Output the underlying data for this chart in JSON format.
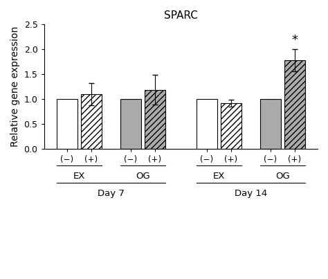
{
  "title": "SPARC",
  "ylabel": "Relative gene expression",
  "ylim": [
    0.0,
    2.5
  ],
  "yticks": [
    0.0,
    0.5,
    1.0,
    1.5,
    2.0,
    2.5
  ],
  "groups": [
    {
      "label": "EX",
      "day": "Day 7",
      "minus_val": 1.0,
      "plus_val": 1.1,
      "minus_err": 0.0,
      "plus_err": 0.22,
      "minus_color": "white",
      "plus_color": "hatch"
    },
    {
      "label": "OG",
      "day": "Day 7",
      "minus_val": 1.0,
      "plus_val": 1.19,
      "minus_err": 0.0,
      "plus_err": 0.3,
      "minus_color": "gray",
      "plus_color": "hatch_gray"
    },
    {
      "label": "EX",
      "day": "Day 14",
      "minus_val": 1.0,
      "plus_val": 0.92,
      "minus_err": 0.0,
      "plus_err": 0.07,
      "minus_color": "white",
      "plus_color": "hatch"
    },
    {
      "label": "OG",
      "day": "Day 14",
      "minus_val": 1.0,
      "plus_val": 1.78,
      "minus_err": 0.0,
      "plus_err": 0.22,
      "minus_color": "gray",
      "plus_color": "hatch_gray",
      "star": true
    }
  ],
  "bar_width": 0.35,
  "hatch_pattern": "////",
  "gray_color": "#aaaaaa",
  "edge_color": "#000000",
  "font_size": 10,
  "title_font_size": 11,
  "group_labels": [
    "EX",
    "OG",
    "EX",
    "OG"
  ],
  "day_labels": [
    "Day 7",
    "Day 14"
  ],
  "minus_label": "(−)",
  "plus_label": "(+)"
}
